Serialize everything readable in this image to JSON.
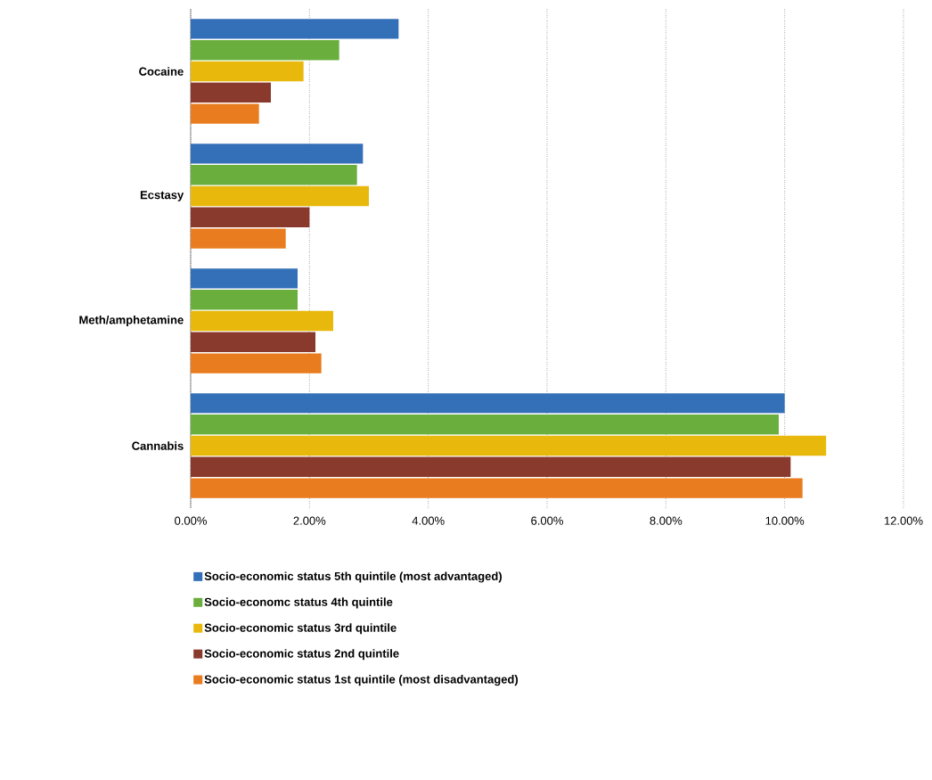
{
  "chart_data": {
    "type": "bar",
    "orientation": "horizontal",
    "categories": [
      "Cocaine",
      "Ecstasy",
      "Meth/amphetamine",
      "Cannabis"
    ],
    "series": [
      {
        "name": "Socio-economic status 5th quintile (most advantaged)",
        "color": "#3470b8",
        "values": [
          3.5,
          2.9,
          1.8,
          10.0
        ]
      },
      {
        "name": "Socio-economc status 4th quintile",
        "color": "#6aaf3e",
        "values": [
          2.5,
          2.8,
          1.8,
          9.9
        ]
      },
      {
        "name": "Socio-economic status 3rd quintile",
        "color": "#e8b90c",
        "values": [
          1.9,
          3.0,
          2.4,
          10.7
        ]
      },
      {
        "name": "Socio-economic status 2nd quintile",
        "color": "#8a3a2c",
        "values": [
          1.35,
          2.0,
          2.1,
          10.1
        ]
      },
      {
        "name": "Socio-economic status 1st quintile (most disadvantaged)",
        "color": "#e87c1e",
        "values": [
          1.15,
          1.6,
          2.2,
          10.3
        ]
      }
    ],
    "xlim": [
      0,
      12
    ],
    "xticks": [
      {
        "value": 0,
        "label": "0.00%"
      },
      {
        "value": 2,
        "label": "2.00%"
      },
      {
        "value": 4,
        "label": "4.00%"
      },
      {
        "value": 6,
        "label": "6.00%"
      },
      {
        "value": 8,
        "label": "8.00%"
      },
      {
        "value": 10,
        "label": "10.00%"
      },
      {
        "value": 12,
        "label": "12.00%"
      }
    ],
    "grid": "x",
    "legend": "bottom"
  }
}
